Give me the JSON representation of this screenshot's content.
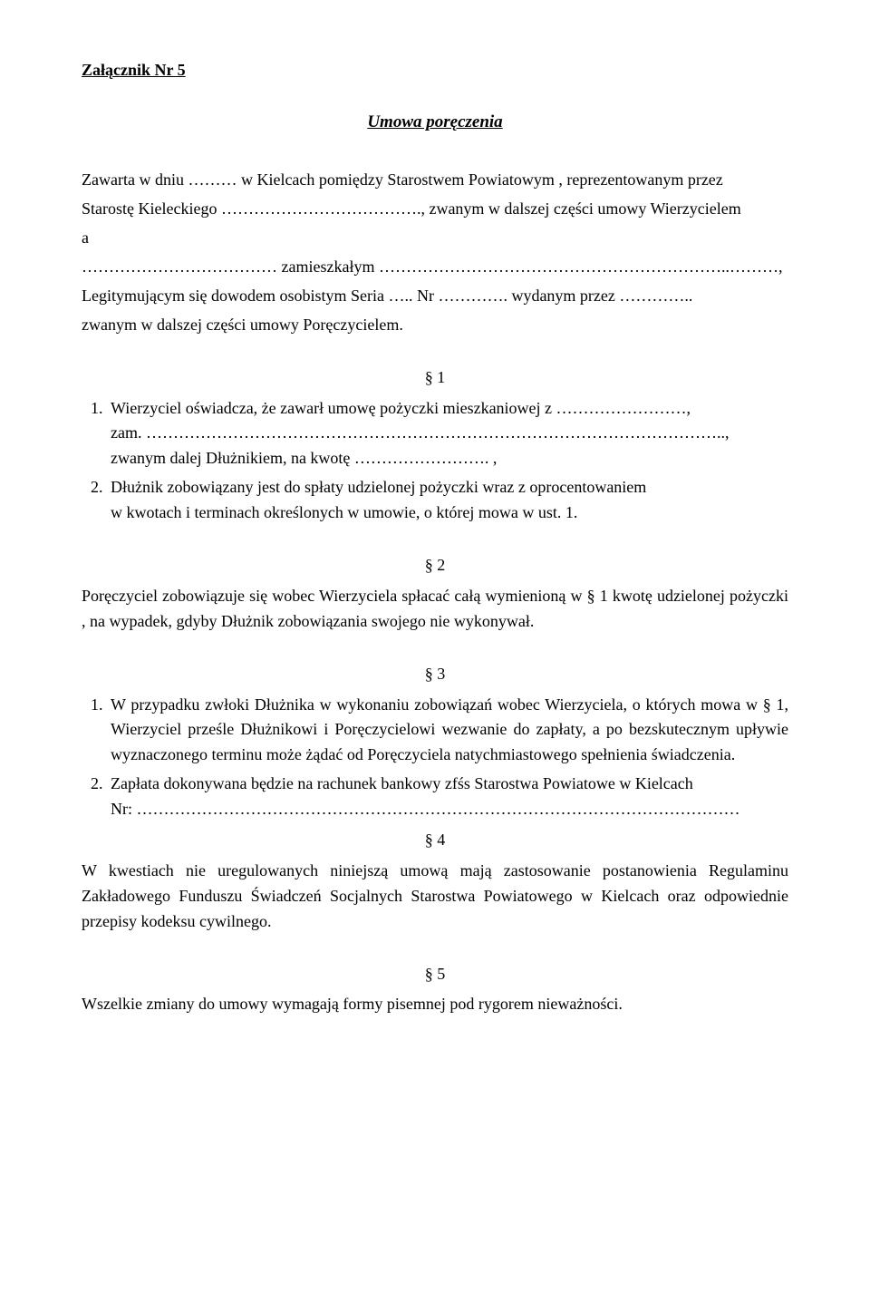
{
  "attachment_label": "Załącznik Nr 5",
  "title": "Umowa poręczenia",
  "intro": {
    "line1": "Zawarta w dniu ……… w Kielcach pomiędzy Starostwem Powiatowym , reprezentowanym przez",
    "line2": "Starostę Kieleckiego ………………………………., zwanym w dalszej części umowy Wierzycielem",
    "line3": "a",
    "line4": "……………………………… zamieszkałym ………………………………………………………..………,",
    "line5": "Legitymującym się dowodem osobistym Seria ….. Nr …………. wydanym przez …………..",
    "line6": "zwanym w dalszej części umowy Poręczycielem."
  },
  "s1": {
    "num": "§ 1",
    "item1": "Wierzyciel oświadcza, że zawarł umowę pożyczki mieszkaniowej z ……………………,",
    "item1b": "zam. ……………………………………………………………………………………………..,",
    "item1c": "zwanym dalej Dłużnikiem, na kwotę ……………………. ,",
    "item2a": "Dłużnik zobowiązany jest do spłaty udzielonej pożyczki wraz z   oprocentowaniem",
    "item2b": "w kwotach i terminach określonych  w umowie, o której mowa w ust. 1."
  },
  "s2": {
    "num": "§ 2",
    "text": "Poręczyciel zobowiązuje się wobec Wierzyciela spłacać całą wymienioną w § 1 kwotę udzielonej pożyczki , na wypadek, gdyby Dłużnik zobowiązania swojego nie wykonywał."
  },
  "s3": {
    "num": "§ 3",
    "item1": "W przypadku zwłoki Dłużnika w wykonaniu zobowiązań wobec Wierzyciela, o których mowa w § 1, Wierzyciel prześle Dłużnikowi i Poręczycielowi wezwanie do zapłaty, a po bezskutecznym upływie wyznaczonego terminu może żądać od Poręczyciela natychmiastowego  spełnienia świadczenia.",
    "item2": "Zapłata dokonywana będzie na rachunek bankowy zfśs Starostwa Powiatowe w Kielcach",
    "item2b": "Nr: …………………………………………………………………………………………………"
  },
  "s4": {
    "num": "§ 4",
    "text": "W kwestiach nie uregulowanych niniejszą umową mają zastosowanie postanowienia Regulaminu Zakładowego Funduszu Świadczeń Socjalnych Starostwa Powiatowego w Kielcach oraz odpowiednie przepisy kodeksu cywilnego."
  },
  "s5": {
    "num": "§ 5",
    "text": "Wszelkie zmiany do umowy wymagają formy pisemnej pod rygorem nieważności."
  }
}
